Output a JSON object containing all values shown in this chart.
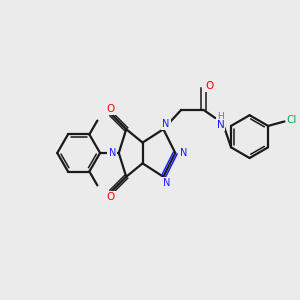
{
  "background_color": "#ebebeb",
  "bond_color": "#1a1a1a",
  "n_color": "#1a1aff",
  "o_color": "#ff0000",
  "cl_color": "#00b050",
  "h_color": "#4a8a8a",
  "figsize": [
    3.0,
    3.0
  ],
  "dpi": 100,
  "xlim": [
    0,
    10
  ],
  "ylim": [
    0,
    10
  ]
}
